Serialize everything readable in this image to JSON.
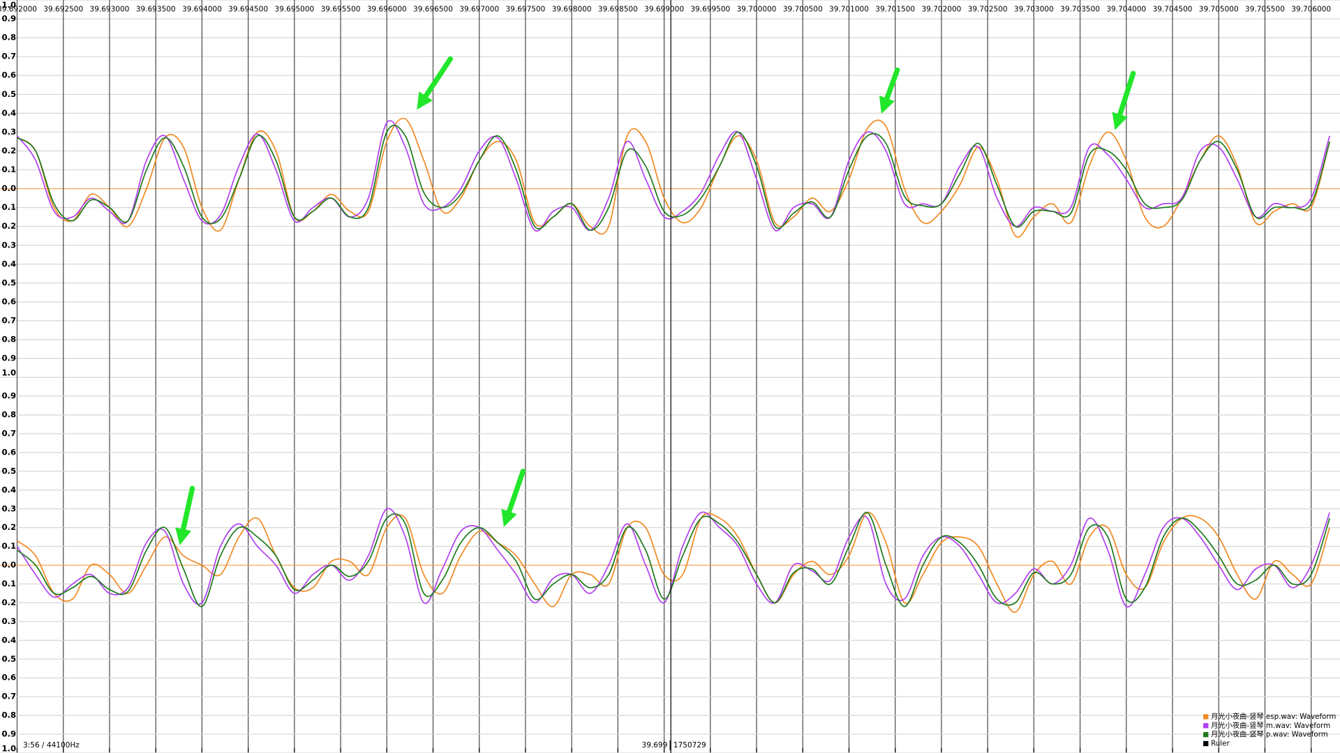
{
  "chart_data": [
    {
      "type": "line",
      "xlim": [
        39.691815,
        39.706312
      ],
      "xticks": [
        {
          "value": 39.692,
          "label": "39.692000"
        },
        {
          "value": 39.6925,
          "label": "39.692500"
        },
        {
          "value": 39.693,
          "label": "39.693000"
        },
        {
          "value": 39.6935,
          "label": "39.693500"
        },
        {
          "value": 39.694,
          "label": "39.694000"
        },
        {
          "value": 39.6945,
          "label": "39.694500"
        },
        {
          "value": 39.695,
          "label": "39.695000"
        },
        {
          "value": 39.6955,
          "label": "39.695500"
        },
        {
          "value": 39.696,
          "label": "39.696000"
        },
        {
          "value": 39.6965,
          "label": "39.696500"
        },
        {
          "value": 39.697,
          "label": "39.697000"
        },
        {
          "value": 39.6975,
          "label": "39.697500"
        },
        {
          "value": 39.698,
          "label": "39.698000"
        },
        {
          "value": 39.6985,
          "label": "39.698500"
        },
        {
          "value": 39.699,
          "label": "39.699000"
        },
        {
          "value": 39.6995,
          "label": "39.699500"
        },
        {
          "value": 39.7,
          "label": "39.700000"
        },
        {
          "value": 39.7005,
          "label": "39.700500"
        },
        {
          "value": 39.701,
          "label": "39.701000"
        },
        {
          "value": 39.7015,
          "label": "39.701500"
        },
        {
          "value": 39.702,
          "label": "39.702000"
        },
        {
          "value": 39.7025,
          "label": "39.702500"
        },
        {
          "value": 39.703,
          "label": "39.703000"
        },
        {
          "value": 39.7035,
          "label": "39.703500"
        },
        {
          "value": 39.704,
          "label": "39.704000"
        },
        {
          "value": 39.7045,
          "label": "39.704500"
        },
        {
          "value": 39.705,
          "label": "39.705000"
        },
        {
          "value": 39.7055,
          "label": "39.705500"
        },
        {
          "value": 39.706,
          "label": "39.706000"
        }
      ],
      "ylim": [
        -1,
        1
      ],
      "yticks": [
        {
          "value": 1,
          "label": "1.0"
        },
        0.9,
        0.8,
        0.7,
        0.6,
        0.5,
        0.4,
        0.3,
        0.2,
        0.1,
        {
          "value": 0,
          "label": "0.0"
        },
        {
          "value": -0.1,
          "label": "0.1"
        },
        {
          "value": -0.2,
          "label": "0.2"
        },
        {
          "value": -0.3,
          "label": "0.3"
        },
        {
          "value": -0.4,
          "label": "0.4"
        },
        {
          "value": -0.5,
          "label": "0.5"
        },
        {
          "value": -0.6,
          "label": "0.6"
        },
        {
          "value": -0.7,
          "label": "0.7"
        },
        {
          "value": -0.8,
          "label": "0.8"
        },
        {
          "value": -0.9,
          "label": "0.9"
        },
        {
          "value": -1,
          "label": "1.0"
        }
      ],
      "grid": true,
      "zero_line_color": "#f5a65b",
      "x": [
        39.692,
        39.6922,
        39.6924,
        39.6926,
        39.6928,
        39.693,
        39.6932,
        39.6934,
        39.6936,
        39.6938,
        39.694,
        39.6942,
        39.6944,
        39.6946,
        39.6948,
        39.695,
        39.6952,
        39.6954,
        39.6956,
        39.6958,
        39.696,
        39.6962,
        39.6964,
        39.6966,
        39.6968,
        39.697,
        39.6972,
        39.6974,
        39.6976,
        39.6978,
        39.698,
        39.6982,
        39.6984,
        39.6986,
        39.6988,
        39.699,
        39.6992,
        39.6994,
        39.6996,
        39.6998,
        39.7,
        39.7002,
        39.7004,
        39.7006,
        39.7008,
        39.701,
        39.7012,
        39.7014,
        39.7016,
        39.7018,
        39.702,
        39.7022,
        39.7024,
        39.7026,
        39.7028,
        39.703,
        39.7032,
        39.7034,
        39.7036,
        39.7038,
        39.704,
        39.7042,
        39.7044,
        39.7046,
        39.7048,
        39.705,
        39.7052,
        39.7054,
        39.7056,
        39.7058,
        39.706,
        39.7062
      ],
      "series": [
        {
          "color": "#f08a24",
          "values": [
            0.27,
            0.2,
            -0.1,
            -0.17,
            -0.03,
            -0.1,
            -0.2,
            0.0,
            0.27,
            0.22,
            -0.1,
            -0.22,
            0.05,
            0.3,
            0.2,
            -0.15,
            -0.12,
            -0.03,
            -0.12,
            -0.12,
            0.25,
            0.37,
            0.15,
            -0.12,
            -0.05,
            0.15,
            0.25,
            0.15,
            -0.18,
            -0.15,
            -0.08,
            -0.2,
            -0.2,
            0.28,
            0.25,
            -0.05,
            -0.18,
            -0.1,
            0.12,
            0.28,
            0.15,
            -0.18,
            -0.15,
            -0.05,
            -0.12,
            0.05,
            0.32,
            0.33,
            0.0,
            -0.18,
            -0.12,
            0.02,
            0.22,
            0.05,
            -0.25,
            -0.15,
            -0.08,
            -0.18,
            0.12,
            0.3,
            0.15,
            -0.15,
            -0.2,
            -0.05,
            0.15,
            0.28,
            0.12,
            -0.18,
            -0.12,
            -0.08,
            -0.1,
            0.25
          ]
        },
        {
          "color": "#b140f0",
          "values": [
            0.28,
            0.15,
            -0.12,
            -0.15,
            -0.05,
            -0.12,
            -0.17,
            0.15,
            0.28,
            0.05,
            -0.17,
            -0.14,
            0.12,
            0.29,
            0.1,
            -0.17,
            -0.1,
            -0.05,
            -0.15,
            -0.05,
            0.35,
            0.22,
            -0.08,
            -0.1,
            0.0,
            0.2,
            0.27,
            0.05,
            -0.22,
            -0.12,
            -0.1,
            -0.22,
            -0.05,
            0.25,
            0.05,
            -0.15,
            -0.12,
            -0.02,
            0.18,
            0.3,
            0.05,
            -0.22,
            -0.1,
            -0.08,
            -0.15,
            0.15,
            0.3,
            0.2,
            -0.08,
            -0.08,
            -0.08,
            0.12,
            0.22,
            -0.05,
            -0.2,
            -0.1,
            -0.12,
            -0.1,
            0.22,
            0.18,
            0.05,
            -0.1,
            -0.08,
            -0.05,
            0.2,
            0.22,
            0.05,
            -0.15,
            -0.08,
            -0.1,
            -0.05,
            0.28
          ]
        },
        {
          "color": "#1e7a1e",
          "values": [
            0.27,
            0.2,
            -0.08,
            -0.17,
            -0.06,
            -0.1,
            -0.17,
            0.1,
            0.27,
            0.12,
            -0.15,
            -0.16,
            0.05,
            0.28,
            0.15,
            -0.15,
            -0.12,
            -0.05,
            -0.15,
            -0.1,
            0.3,
            0.28,
            -0.02,
            -0.1,
            -0.03,
            0.15,
            0.28,
            0.1,
            -0.2,
            -0.15,
            -0.08,
            -0.22,
            -0.1,
            0.2,
            0.12,
            -0.12,
            -0.14,
            -0.05,
            0.12,
            0.3,
            0.12,
            -0.2,
            -0.13,
            -0.07,
            -0.15,
            0.1,
            0.28,
            0.24,
            -0.04,
            -0.09,
            -0.08,
            0.08,
            0.24,
            0.02,
            -0.2,
            -0.12,
            -0.12,
            -0.13,
            0.18,
            0.2,
            0.1,
            -0.08,
            -0.1,
            -0.06,
            0.15,
            0.25,
            0.1,
            -0.15,
            -0.1,
            -0.1,
            -0.08,
            0.25
          ]
        }
      ]
    },
    {
      "type": "line",
      "xlim": [
        39.691815,
        39.706312
      ],
      "ylim": [
        -1,
        1
      ],
      "yticks": [
        0.9,
        0.8,
        0.7,
        0.6,
        0.5,
        0.4,
        0.3,
        0.2,
        0.1,
        {
          "value": 0,
          "label": "0.0"
        },
        {
          "value": -0.1,
          "label": "0.1"
        },
        {
          "value": -0.2,
          "label": "0.2"
        },
        {
          "value": -0.3,
          "label": "0.3"
        },
        {
          "value": -0.4,
          "label": "0.4"
        },
        {
          "value": -0.5,
          "label": "0.5"
        },
        {
          "value": -0.6,
          "label": "0.6"
        },
        {
          "value": -0.7,
          "label": "0.7"
        },
        {
          "value": -0.8,
          "label": "0.8"
        },
        {
          "value": -0.9,
          "label": "0.9"
        },
        {
          "value": -1,
          "label": "1.0"
        }
      ],
      "grid": true,
      "zero_line_color": "#f5a65b",
      "legend": "bottom-right",
      "ruler_label": "Ruler",
      "ruler_color": "#000000",
      "x": [
        39.692,
        39.6922,
        39.6924,
        39.6926,
        39.6928,
        39.693,
        39.6932,
        39.6934,
        39.6936,
        39.6938,
        39.694,
        39.6942,
        39.6944,
        39.6946,
        39.6948,
        39.695,
        39.6952,
        39.6954,
        39.6956,
        39.6958,
        39.696,
        39.6962,
        39.6964,
        39.6966,
        39.6968,
        39.697,
        39.6972,
        39.6974,
        39.6976,
        39.6978,
        39.698,
        39.6982,
        39.6984,
        39.6986,
        39.6988,
        39.699,
        39.6992,
        39.6994,
        39.6996,
        39.6998,
        39.7,
        39.7002,
        39.7004,
        39.7006,
        39.7008,
        39.701,
        39.7012,
        39.7014,
        39.7016,
        39.7018,
        39.702,
        39.7022,
        39.7024,
        39.7026,
        39.7028,
        39.703,
        39.7032,
        39.7034,
        39.7036,
        39.7038,
        39.704,
        39.7042,
        39.7044,
        39.7046,
        39.7048,
        39.705,
        39.7052,
        39.7054,
        39.7056,
        39.7058,
        39.706,
        39.7062
      ],
      "series": [
        {
          "name": "月光小夜曲-竖琴 esp.wav: Waveform",
          "color": "#f08a24",
          "values": [
            0.13,
            0.05,
            -0.15,
            -0.18,
            0.0,
            -0.05,
            -0.15,
            0.0,
            0.15,
            0.05,
            0.0,
            -0.05,
            0.15,
            0.25,
            0.05,
            -0.12,
            -0.12,
            0.02,
            0.02,
            -0.05,
            0.2,
            0.25,
            -0.05,
            -0.15,
            0.05,
            0.18,
            0.12,
            0.05,
            -0.1,
            -0.22,
            -0.05,
            -0.05,
            -0.1,
            0.2,
            0.2,
            -0.05,
            -0.05,
            0.25,
            0.25,
            0.15,
            -0.05,
            -0.2,
            -0.05,
            0.02,
            -0.05,
            0.05,
            0.28,
            0.12,
            -0.2,
            -0.05,
            0.12,
            0.15,
            0.1,
            -0.1,
            -0.25,
            -0.05,
            0.02,
            -0.1,
            0.15,
            0.2,
            -0.05,
            -0.12,
            0.12,
            0.25,
            0.25,
            0.15,
            -0.05,
            -0.18,
            0.02,
            -0.05,
            -0.1,
            0.2
          ]
        },
        {
          "name": "月光小夜曲-竖琴 m.wav: Waveform",
          "color": "#b140f0",
          "values": [
            0.1,
            -0.05,
            -0.17,
            -0.1,
            -0.05,
            -0.15,
            -0.12,
            0.12,
            0.18,
            -0.1,
            -0.2,
            0.1,
            0.22,
            0.1,
            0.0,
            -0.15,
            -0.05,
            0.0,
            -0.08,
            0.05,
            0.3,
            0.15,
            -0.2,
            -0.02,
            0.18,
            0.2,
            0.08,
            -0.05,
            -0.2,
            -0.07,
            -0.05,
            -0.15,
            0.0,
            0.22,
            0.0,
            -0.2,
            0.1,
            0.28,
            0.2,
            0.1,
            -0.1,
            -0.2,
            0.0,
            -0.03,
            -0.08,
            0.15,
            0.25,
            -0.1,
            -0.18,
            0.05,
            0.15,
            0.1,
            -0.05,
            -0.2,
            -0.15,
            -0.02,
            -0.1,
            0.0,
            0.25,
            0.08,
            -0.22,
            -0.05,
            0.2,
            0.25,
            0.15,
            0.0,
            -0.13,
            -0.02,
            0.0,
            -0.12,
            0.0,
            0.28
          ]
        },
        {
          "name": "月光小夜曲-竖琴 p.wav: Waveform",
          "color": "#1e7a1e",
          "values": [
            0.08,
            0.0,
            -0.15,
            -0.12,
            -0.06,
            -0.13,
            -0.14,
            0.08,
            0.2,
            -0.02,
            -0.22,
            0.05,
            0.2,
            0.15,
            0.05,
            -0.13,
            -0.08,
            0.0,
            -0.06,
            0.02,
            0.25,
            0.22,
            -0.15,
            -0.08,
            0.12,
            0.2,
            0.12,
            0.02,
            -0.18,
            -0.1,
            -0.05,
            -0.12,
            -0.05,
            0.2,
            0.08,
            -0.18,
            0.05,
            0.25,
            0.22,
            0.12,
            -0.05,
            -0.2,
            -0.04,
            -0.02,
            -0.1,
            0.1,
            0.28,
            0.0,
            -0.22,
            0.0,
            0.15,
            0.12,
            0.0,
            -0.18,
            -0.2,
            -0.04,
            -0.1,
            -0.05,
            0.2,
            0.15,
            -0.18,
            -0.12,
            0.15,
            0.25,
            0.18,
            0.05,
            -0.1,
            -0.08,
            0.0,
            -0.1,
            -0.05,
            0.25
          ]
        }
      ]
    }
  ],
  "status": {
    "duration": "3:56 / 44100Hz",
    "position": "39.699",
    "frame": "1750729"
  }
}
